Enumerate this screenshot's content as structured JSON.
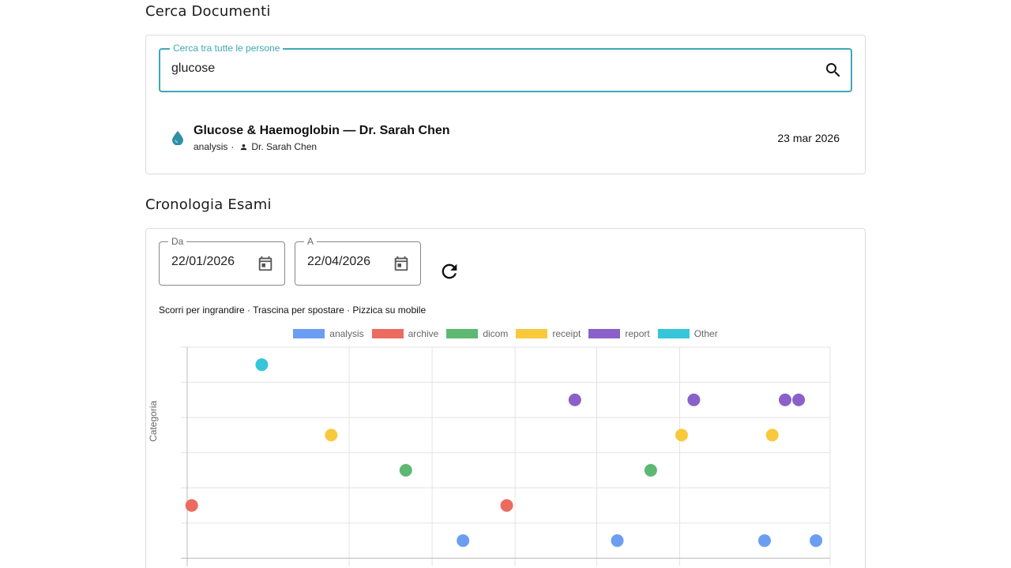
{
  "search_section": {
    "title": "Cerca Documenti",
    "field_label": "Cerca tra tutte le persone",
    "query": "glucose",
    "icon": "search-icon",
    "result": {
      "title": "Glucose & Haemoglobin — Dr. Sarah Chen",
      "category": "analysis",
      "separator": "·",
      "doctor": "Dr. Sarah Chen",
      "date": "23 mar 2026",
      "icon": "water-drop-icon",
      "icon_color": "#2f8fa6"
    }
  },
  "timeline_section": {
    "title": "Cronologia Esami",
    "from_label": "Da",
    "from_value": "22/01/2026",
    "to_label": "A",
    "to_value": "22/04/2026",
    "refresh_icon": "refresh-icon",
    "calendar_icon": "calendar-icon",
    "hint": "Scorri per ingrandire · Trascina per spostare · Pizzica su mobile"
  },
  "chart_data": {
    "type": "scatter",
    "ylabel": "Categoria",
    "legend_position": "top-center",
    "grid": true,
    "series": [
      {
        "name": "analysis",
        "color": "#6b9ef2",
        "points": [
          {
            "x": 0.429,
            "y": 0
          },
          {
            "x": 0.669,
            "y": 0
          },
          {
            "x": 0.898,
            "y": 0
          },
          {
            "x": 0.978,
            "y": 0
          }
        ]
      },
      {
        "name": "archive",
        "color": "#ec6b60",
        "points": [
          {
            "x": 0.007,
            "y": 1
          },
          {
            "x": 0.497,
            "y": 1
          }
        ]
      },
      {
        "name": "dicom",
        "color": "#5db872",
        "points": [
          {
            "x": 0.34,
            "y": 2
          },
          {
            "x": 0.721,
            "y": 2
          }
        ]
      },
      {
        "name": "receipt",
        "color": "#f9c93c",
        "points": [
          {
            "x": 0.224,
            "y": 3
          },
          {
            "x": 0.769,
            "y": 3
          },
          {
            "x": 0.91,
            "y": 3
          }
        ]
      },
      {
        "name": "report",
        "color": "#8a60c9",
        "points": [
          {
            "x": 0.603,
            "y": 4
          },
          {
            "x": 0.788,
            "y": 4
          },
          {
            "x": 0.93,
            "y": 4
          },
          {
            "x": 0.951,
            "y": 4
          }
        ]
      },
      {
        "name": "Other",
        "color": "#35c6d9",
        "points": [
          {
            "x": 0.116,
            "y": 5
          }
        ]
      }
    ]
  }
}
